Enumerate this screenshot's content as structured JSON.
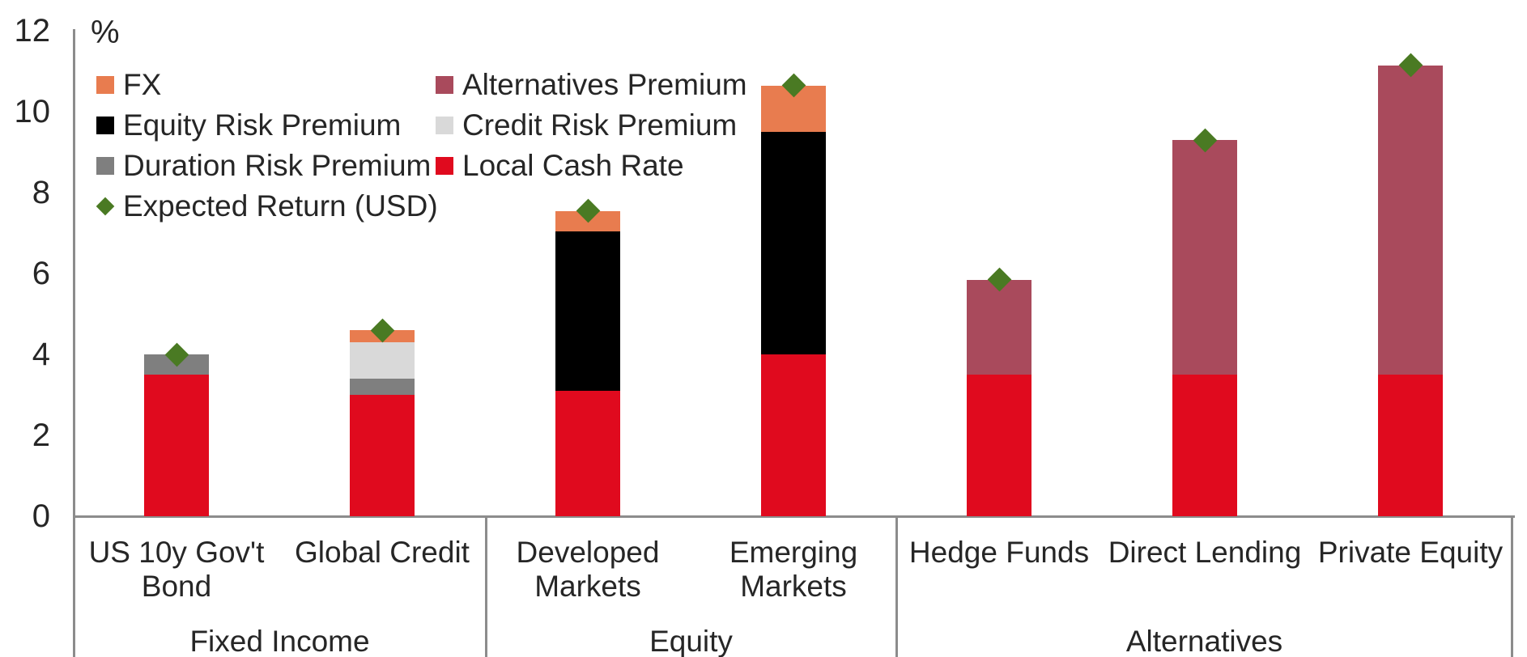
{
  "axis": {
    "unit_label": "%",
    "ticks": [
      "12",
      "10",
      "8",
      "6",
      "4",
      "2",
      "0"
    ],
    "tick_values": [
      12,
      10,
      8,
      6,
      4,
      2,
      0
    ]
  },
  "legend": {
    "col1": [
      {
        "label": "FX",
        "color": "#E87C4F",
        "shape": "square"
      },
      {
        "label": "Equity Risk Premium",
        "color": "#000000",
        "shape": "square"
      },
      {
        "label": "Duration Risk Premium",
        "color": "#7F7F7F",
        "shape": "square"
      },
      {
        "label": "Expected Return (USD)",
        "color": "#4A7A23",
        "shape": "diamond"
      }
    ],
    "col2": [
      {
        "label": "Alternatives Premium",
        "color": "#A94A5C",
        "shape": "square"
      },
      {
        "label": "Credit Risk Premium",
        "color": "#D9D9D9",
        "shape": "square"
      },
      {
        "label": "Local Cash Rate",
        "color": "#E00A1E",
        "shape": "square"
      }
    ]
  },
  "chart_data": {
    "type": "bar",
    "stacked": true,
    "title": "",
    "ylabel": "%",
    "ylim": [
      0,
      12
    ],
    "grid": false,
    "legend_position": "top-left inside plot area",
    "categories": [
      "US 10y Gov't Bond",
      "Global Credit",
      "Developed Markets",
      "Emerging Markets",
      "Hedge Funds",
      "Direct Lending",
      "Private Equity"
    ],
    "category_label_lines": [
      [
        "US 10y Gov't",
        "Bond"
      ],
      [
        "Global Credit"
      ],
      [
        "Developed",
        "Markets"
      ],
      [
        "Emerging",
        "Markets"
      ],
      [
        "Hedge Funds"
      ],
      [
        "Direct Lending"
      ],
      [
        "Private Equity"
      ]
    ],
    "groups": [
      {
        "label": "Fixed Income",
        "category_indexes": [
          0,
          1
        ]
      },
      {
        "label": "Equity",
        "category_indexes": [
          2,
          3
        ]
      },
      {
        "label": "Alternatives",
        "category_indexes": [
          4,
          5,
          6
        ]
      }
    ],
    "series": [
      {
        "name": "Local Cash Rate",
        "color": "#E00A1E",
        "values": [
          3.5,
          3.0,
          3.1,
          4.0,
          3.5,
          3.5,
          3.5
        ]
      },
      {
        "name": "Duration Risk Premium",
        "color": "#7F7F7F",
        "values": [
          0.5,
          0.4,
          0,
          0,
          0,
          0,
          0
        ]
      },
      {
        "name": "Credit Risk Premium",
        "color": "#D9D9D9",
        "values": [
          0,
          0.9,
          0,
          0,
          0,
          0,
          0
        ]
      },
      {
        "name": "Equity Risk Premium",
        "color": "#000000",
        "values": [
          0,
          0,
          3.95,
          5.5,
          0,
          0,
          0
        ]
      },
      {
        "name": "Alternatives Premium",
        "color": "#A94A5C",
        "values": [
          0,
          0,
          0,
          0,
          2.35,
          5.8,
          7.65
        ]
      },
      {
        "name": "FX",
        "color": "#E87C4F",
        "values": [
          0,
          0.3,
          0.5,
          1.15,
          0,
          0,
          0
        ]
      }
    ],
    "markers": {
      "name": "Expected Return (USD)",
      "color": "#4A7A23",
      "shape": "diamond",
      "values": [
        4.0,
        4.6,
        7.55,
        10.65,
        5.85,
        9.3,
        11.15
      ]
    }
  }
}
